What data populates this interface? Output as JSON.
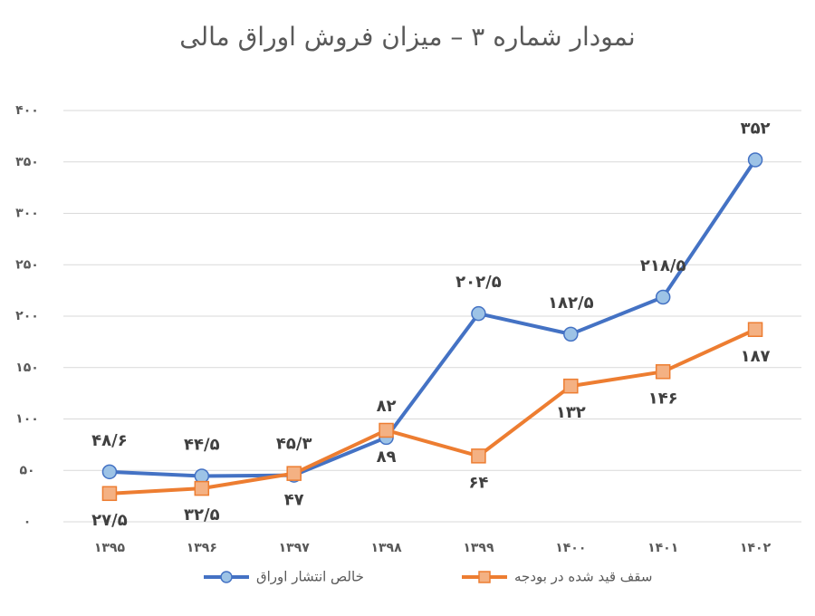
{
  "chart_data": {
    "type": "line",
    "title": "نمودار شماره ۳ – میزان فروش اوراق مالی",
    "categories": [
      "۱۳۹۵",
      "۱۳۹۶",
      "۱۳۹۷",
      "۱۳۹۸",
      "۱۳۹۹",
      "۱۴۰۰",
      "۱۴۰۱",
      "۱۴۰۲"
    ],
    "series": [
      {
        "name": "خالص انتشار اوراق",
        "color": "#4472c4",
        "marker_fill": "#9dc3e6",
        "marker": "circle",
        "label_position": "above",
        "values": [
          48.6,
          44.5,
          45.3,
          82,
          202.5,
          182.5,
          218.5,
          352
        ],
        "value_labels": [
          "۴۸/۶",
          "۴۴/۵",
          "۴۵/۳",
          "۸۲",
          "۲۰۲/۵",
          "۱۸۲/۵",
          "۲۱۸/۵",
          "۳۵۲"
        ]
      },
      {
        "name": "سقف قید شده در بودجه",
        "color": "#ed7d31",
        "marker_fill": "#f4b183",
        "marker": "square",
        "label_position": "below",
        "values": [
          27.5,
          32.5,
          47,
          89,
          64,
          132,
          146,
          187
        ],
        "value_labels": [
          "۲۷/۵",
          "۳۲/۵",
          "۴۷",
          "۸۹",
          "۶۴",
          "۱۳۲",
          "۱۴۶",
          "۱۸۷"
        ]
      }
    ],
    "ylim": [
      0,
      400
    ],
    "yticks": [
      {
        "value": 0,
        "label": "۰"
      },
      {
        "value": 50,
        "label": "۵۰"
      },
      {
        "value": 100,
        "label": "۱۰۰"
      },
      {
        "value": 150,
        "label": "۱۵۰"
      },
      {
        "value": 200,
        "label": "۲۰۰"
      },
      {
        "value": 250,
        "label": "۲۵۰"
      },
      {
        "value": 300,
        "label": "۳۰۰"
      },
      {
        "value": 350,
        "label": "۳۵۰"
      },
      {
        "value": 400,
        "label": "۴۰۰"
      }
    ],
    "grid": true,
    "legend": "bottom"
  }
}
